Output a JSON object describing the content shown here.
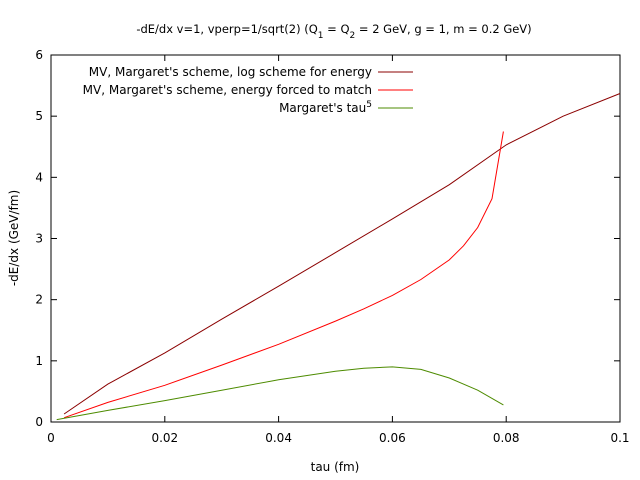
{
  "chart_data": {
    "type": "line",
    "title": "-dE/dx v=1, vperp=1/sqrt(2) (Q₁ = Q₂ = 2 GeV, g = 1, m = 0.2 GeV)",
    "title_parts": [
      {
        "t": "-dE/dx v=1, vperp=1/sqrt(2) (Q"
      },
      {
        "t": "1",
        "sub": true
      },
      {
        "t": " = Q"
      },
      {
        "t": "2",
        "sub": true
      },
      {
        "t": " = 2 GeV, g = 1, m = 0.2 GeV)"
      }
    ],
    "xlabel": "tau (fm)",
    "ylabel": "-dE/dx (GeV/fm)",
    "xlim": [
      0,
      0.1
    ],
    "ylim": [
      0,
      6
    ],
    "xticks": [
      0,
      0.02,
      0.04,
      0.06,
      0.08,
      0.1
    ],
    "xtick_labels": [
      "0",
      "0.02",
      "0.04",
      "0.06",
      "0.08",
      "0.1"
    ],
    "yticks": [
      0,
      1,
      2,
      3,
      4,
      5,
      6
    ],
    "ytick_labels": [
      "0",
      "1",
      "2",
      "3",
      "4",
      "5",
      "6"
    ],
    "grid": false,
    "legend_position": "top-left",
    "series": [
      {
        "name": "MV, Margaret's scheme, log scheme for energy",
        "color": "#8b0000",
        "x": [
          0.0023,
          0.01,
          0.02,
          0.03,
          0.04,
          0.05,
          0.06,
          0.07,
          0.08,
          0.09,
          0.1
        ],
        "y": [
          0.13,
          0.62,
          1.13,
          1.68,
          2.22,
          2.77,
          3.32,
          3.88,
          4.53,
          5.0,
          5.37
        ]
      },
      {
        "name": "MV, Margaret's scheme, energy forced to match",
        "color": "#ff0000",
        "x": [
          0.0023,
          0.01,
          0.02,
          0.03,
          0.04,
          0.05,
          0.055,
          0.06,
          0.065,
          0.07,
          0.0725,
          0.075,
          0.0775,
          0.0795
        ],
        "y": [
          0.07,
          0.32,
          0.6,
          0.93,
          1.27,
          1.65,
          1.85,
          2.07,
          2.33,
          2.65,
          2.88,
          3.18,
          3.65,
          4.75
        ]
      },
      {
        "name": "Margaret's tau",
        "name_sup": "5",
        "color": "#4d8b00",
        "x": [
          0.001,
          0.01,
          0.02,
          0.03,
          0.04,
          0.05,
          0.055,
          0.06,
          0.065,
          0.07,
          0.075,
          0.0795
        ],
        "y": [
          0.04,
          0.19,
          0.35,
          0.52,
          0.69,
          0.83,
          0.88,
          0.9,
          0.86,
          0.72,
          0.52,
          0.28
        ]
      }
    ]
  }
}
